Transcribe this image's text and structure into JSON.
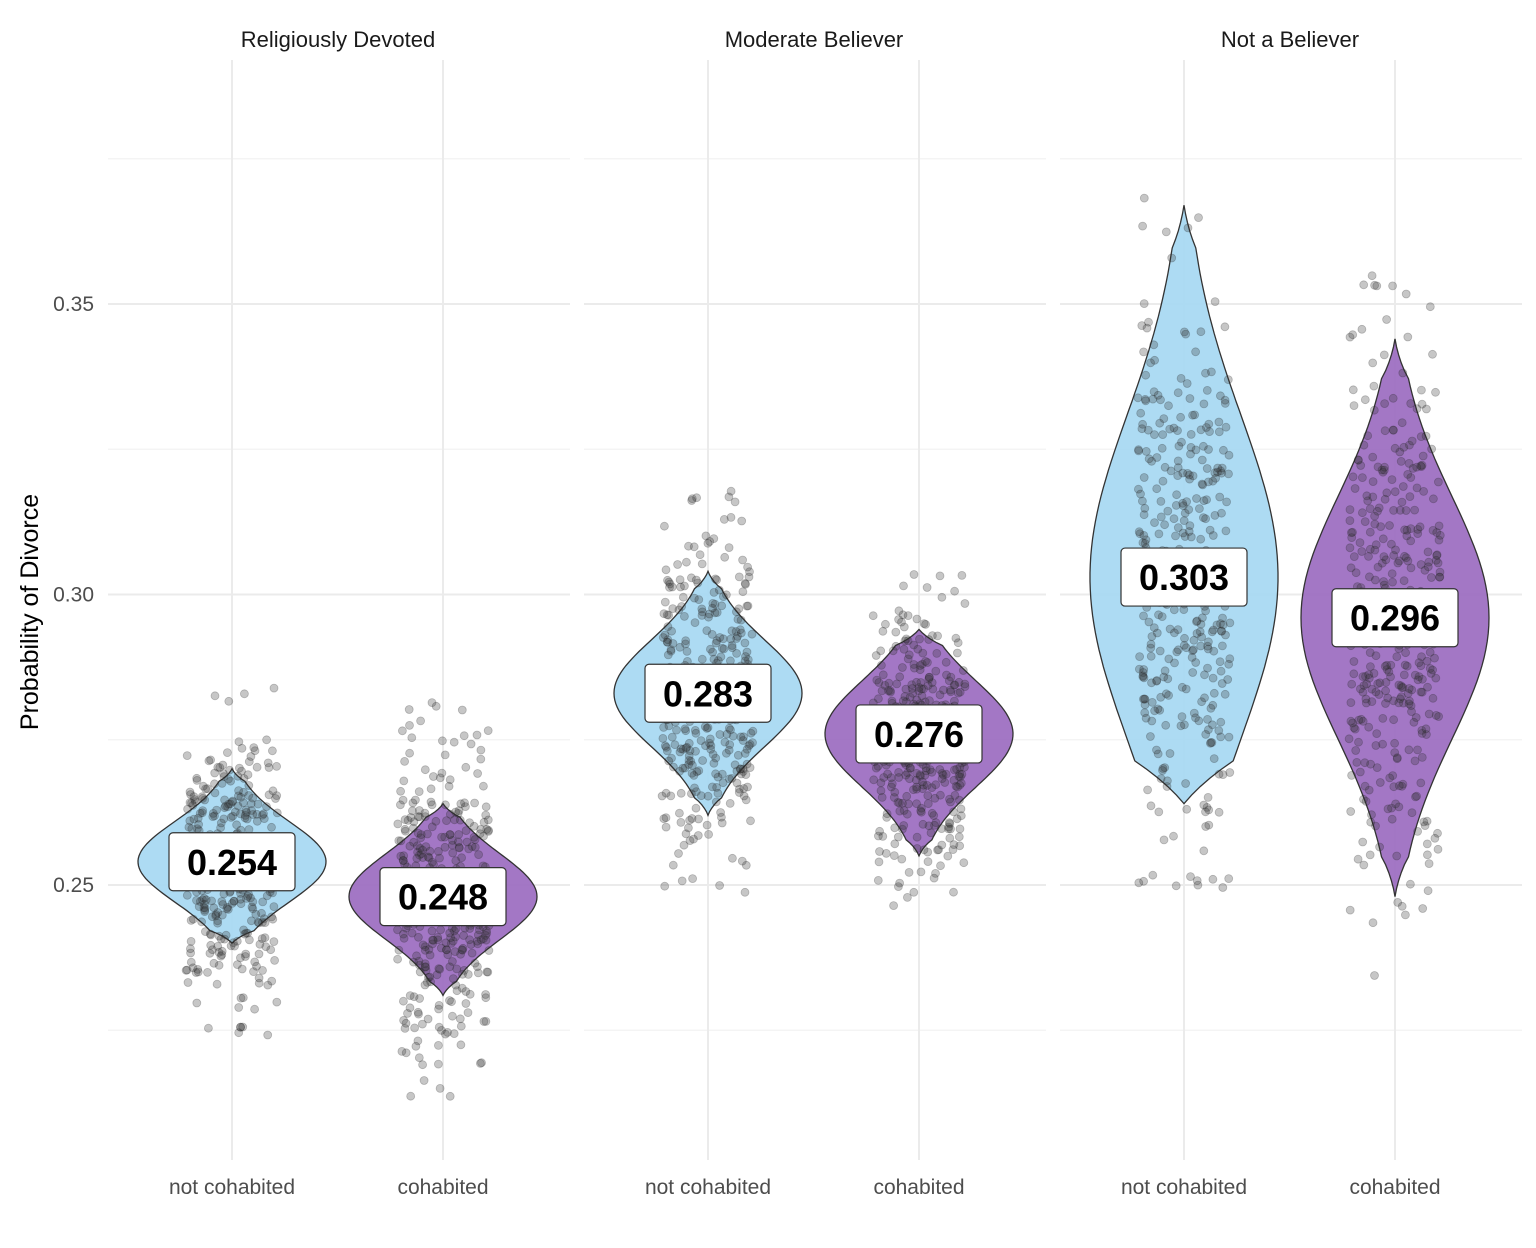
{
  "chart_data": {
    "type": "violin",
    "title": "",
    "xlabel": "",
    "ylabel": "Probability of Divorce",
    "ylim": [
      0.205,
      0.38
    ],
    "yticks": [
      0.25,
      0.3,
      0.35
    ],
    "ytick_labels": [
      "0.25",
      "0.30",
      "0.35"
    ],
    "grid": true,
    "legend": "none",
    "categories": [
      "not cohabited",
      "cohabited"
    ],
    "colors": {
      "not cohabited": "#a6d8f2",
      "cohabited": "#9b6bc0"
    },
    "facets": [
      {
        "name": "Religiously Devoted",
        "groups": [
          {
            "category": "not cohabited",
            "mean": 0.254,
            "label": "0.254",
            "min": 0.24,
            "max": 0.27,
            "point_min": 0.224,
            "point_max": 0.284
          },
          {
            "category": "cohabited",
            "mean": 0.248,
            "label": "0.248",
            "min": 0.231,
            "max": 0.264,
            "point_min": 0.211,
            "point_max": 0.282
          }
        ]
      },
      {
        "name": "Moderate Believer",
        "groups": [
          {
            "category": "not cohabited",
            "mean": 0.283,
            "label": "0.283",
            "min": 0.262,
            "max": 0.304,
            "point_min": 0.248,
            "point_max": 0.318
          },
          {
            "category": "cohabited",
            "mean": 0.276,
            "label": "0.276",
            "min": 0.255,
            "max": 0.294,
            "point_min": 0.245,
            "point_max": 0.309
          }
        ]
      },
      {
        "name": "Not a Believer",
        "groups": [
          {
            "category": "not cohabited",
            "mean": 0.303,
            "label": "0.303",
            "min": 0.264,
            "max": 0.367,
            "point_min": 0.249,
            "point_max": 0.384
          },
          {
            "category": "cohabited",
            "mean": 0.296,
            "label": "0.296",
            "min": 0.248,
            "max": 0.344,
            "point_min": 0.234,
            "point_max": 0.355
          }
        ]
      }
    ]
  }
}
